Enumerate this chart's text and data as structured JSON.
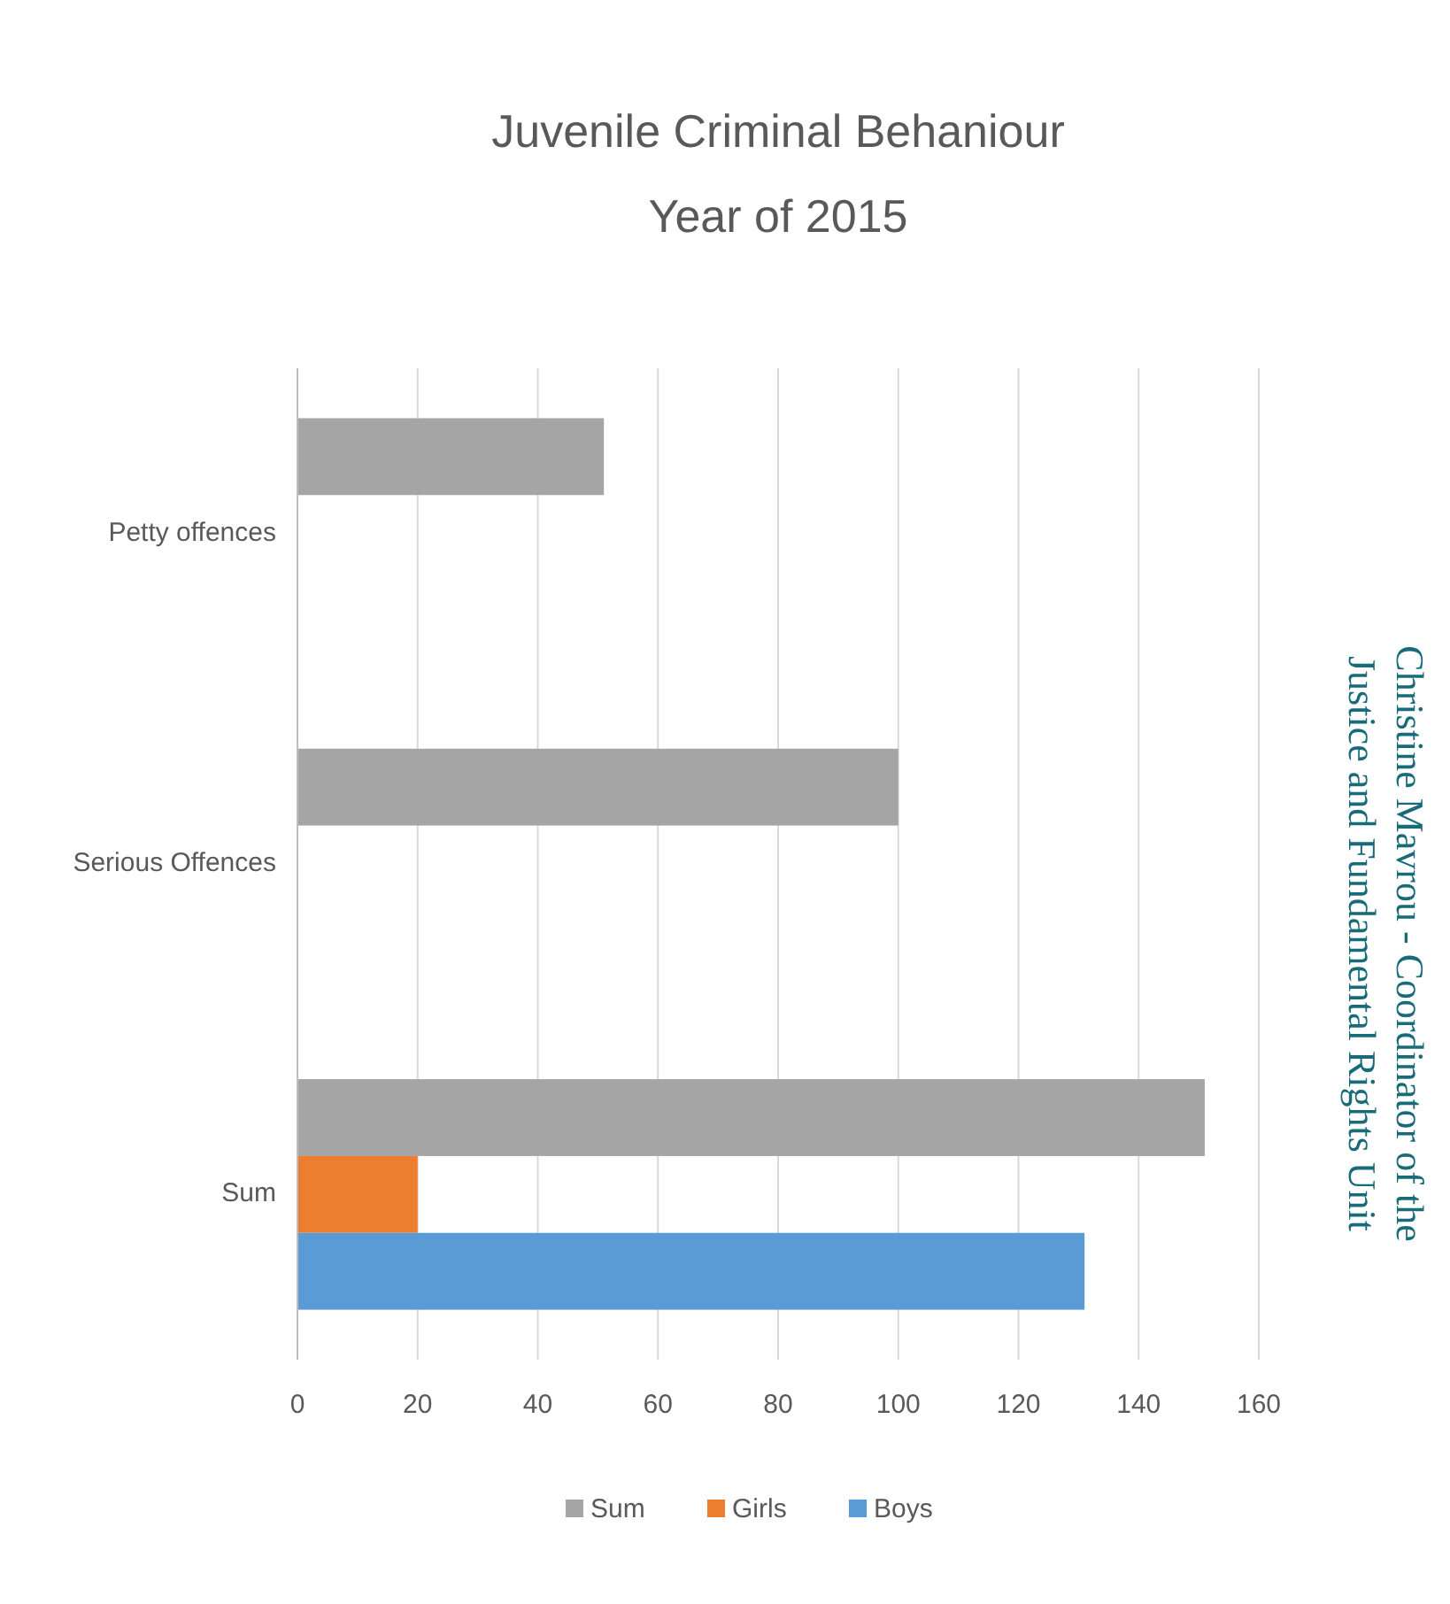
{
  "chart_data": {
    "type": "bar",
    "orientation": "horizontal",
    "title": "Juvenile Criminal Behaniour\nYear of 2015",
    "categories": [
      "Petty offences",
      "Serious Offences",
      "Sum"
    ],
    "series": [
      {
        "name": "Sum",
        "color": "#a5a5a5",
        "values": [
          51,
          100,
          151
        ]
      },
      {
        "name": "Girls",
        "color": "#ed7d31",
        "values": [
          null,
          null,
          20
        ]
      },
      {
        "name": "Boys",
        "color": "#5b9bd5",
        "values": [
          null,
          null,
          131
        ]
      }
    ],
    "xlim": [
      0,
      160
    ],
    "xticks": [
      0,
      20,
      40,
      60,
      80,
      100,
      120,
      140,
      160
    ],
    "grid": "x",
    "legend": "bottom",
    "annotations": [
      "Christine Mavrou - Coordinator of the\nJustice and Fundamental Rights Unit"
    ]
  }
}
